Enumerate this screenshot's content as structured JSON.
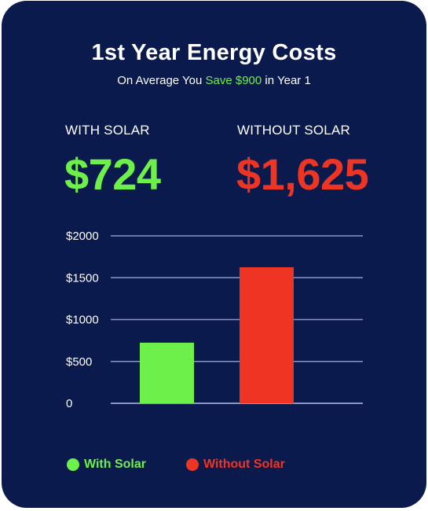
{
  "header": {
    "title": "1st Year Energy Costs",
    "subtitle_prefix": "On Average You ",
    "subtitle_highlight": "Save $900",
    "subtitle_suffix": " in Year 1"
  },
  "stats": {
    "with_label": "WITH SOLAR",
    "with_value": "$724",
    "without_label": "WITHOUT SOLAR",
    "without_value": "$1,625"
  },
  "colors": {
    "background": "#0b1a4d",
    "with_solar": "#6ef04a",
    "without_solar": "#ee3524",
    "gridline": "#8a96c8",
    "text": "#ffffff"
  },
  "chart_data": {
    "type": "bar",
    "categories": [
      "With Solar",
      "Without Solar"
    ],
    "values": [
      724,
      1625
    ],
    "ylim": [
      0,
      2000
    ],
    "yticks": [
      0,
      500,
      1000,
      1500,
      2000
    ],
    "ytick_labels": [
      "0",
      "$500",
      "$1000",
      "$1500",
      "$2000"
    ],
    "grid": true,
    "legend": [
      {
        "label": "With Solar",
        "color": "#6ef04a"
      },
      {
        "label": "Without Solar",
        "color": "#ee3524"
      }
    ],
    "legend_position": "bottom-left"
  }
}
